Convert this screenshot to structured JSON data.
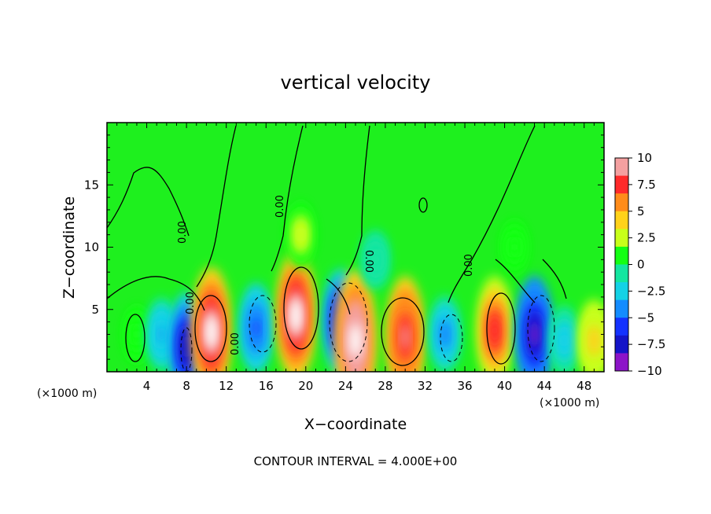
{
  "chart_data": {
    "type": "heatmap",
    "title": "vertical velocity",
    "xlabel": "X−coordinate",
    "ylabel": "Z−coordinate",
    "x_unit_note_left": "(×1000 m)",
    "x_unit_note_right": "(×1000 m)",
    "xlim": [
      0,
      50
    ],
    "ylim": [
      0,
      20
    ],
    "x_ticks": [
      4,
      8,
      12,
      16,
      20,
      24,
      28,
      32,
      36,
      40,
      44,
      48
    ],
    "y_ticks": [
      5,
      10,
      15
    ],
    "colorbar": {
      "ticks": [
        "10",
        "7.5",
        "5",
        "2.5",
        "0",
        "−2.5",
        "−5",
        "−7.5",
        "−10"
      ],
      "range": [
        -10,
        10
      ],
      "colors": [
        "#f4a0a0",
        "#ff2a2a",
        "#ff8c1a",
        "#ffd21a",
        "#c8ff1a",
        "#14ff14",
        "#14e6a0",
        "#14d2e6",
        "#148cff",
        "#1432ff",
        "#1414c8",
        "#8c14c8"
      ]
    },
    "contour_label": "0.00",
    "contour_interval_text": "CONTOUR INTERVAL = 4.000E+00",
    "cells": [
      {
        "x": 3,
        "z": 3.0,
        "w": 1.4
      },
      {
        "x": 5.5,
        "z": 3.0,
        "w": -3.5
      },
      {
        "x": 8,
        "z": 2.0,
        "w": -8.0
      },
      {
        "x": 10.5,
        "z": 3.2,
        "w": 10.5
      },
      {
        "x": 15,
        "z": 3.5,
        "w": -5.5
      },
      {
        "x": 19,
        "z": 4.5,
        "w": 10.5
      },
      {
        "x": 23.5,
        "z": 4.0,
        "w": -7.5
      },
      {
        "x": 25,
        "z": 2.5,
        "w": 12.0
      },
      {
        "x": 30,
        "z": 2.8,
        "w": 9.5
      },
      {
        "x": 34,
        "z": 3.0,
        "w": -4.0
      },
      {
        "x": 39,
        "z": 3.3,
        "w": 8.0
      },
      {
        "x": 43,
        "z": 3.0,
        "w": -9.0
      },
      {
        "x": 46,
        "z": 2.5,
        "w": -3.0
      },
      {
        "x": 49,
        "z": 2.5,
        "w": 4.5
      },
      {
        "x": 19.5,
        "z": 11.0,
        "w": 2.5
      },
      {
        "x": 27,
        "z": 9.0,
        "w": -1.5
      },
      {
        "x": 41,
        "z": 10.0,
        "w": 1.0
      }
    ]
  }
}
